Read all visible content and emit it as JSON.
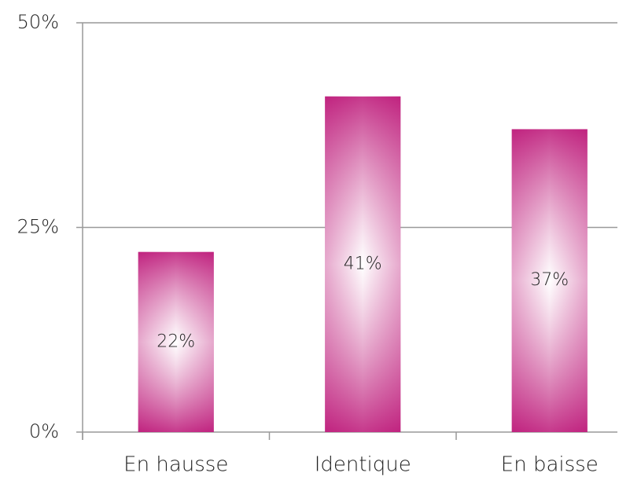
{
  "chart_data": {
    "type": "bar",
    "categories": [
      "En hausse",
      "Identique",
      "En baisse"
    ],
    "values": [
      22,
      41,
      37
    ],
    "value_labels": [
      "22%",
      "41%",
      "37%"
    ],
    "color": "#c0237f",
    "ylim": [
      0,
      50
    ],
    "yticks": [
      {
        "value": 0,
        "label": "0%"
      },
      {
        "value": 25,
        "label": "25%"
      },
      {
        "value": 50,
        "label": "50%"
      }
    ],
    "grid": true
  }
}
